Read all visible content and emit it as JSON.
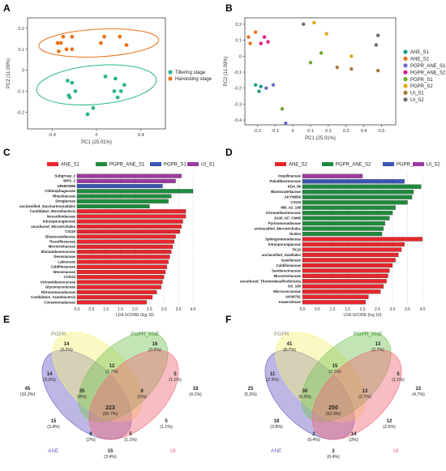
{
  "panel_letters": [
    "A",
    "B",
    "C",
    "D",
    "E",
    "F"
  ],
  "colors": {
    "tillering": "#2bb68f",
    "harvesting": "#e8731c",
    "ANE_S1": "#1f9e89",
    "ANE_S2": "#e8731c",
    "PGPR_ANE_S1": "#6b6bd1",
    "PGPR_ANE_S2": "#e0198a",
    "PGPR_S1": "#6aaa2b",
    "PGPR_S2": "#e1a816",
    "UI_S1": "#a87c3c",
    "UI_S2": "#6e6e6e",
    "lefse_red": "#e8262b",
    "lefse_green": "#1e8c3c",
    "lefse_blue": "#3a55b4",
    "lefse_purple": "#9b3aa0",
    "venn_ANE": "#6b5fc4",
    "venn_PGPR": "#f6f17a",
    "venn_PGPR_ANE": "#7bc65b",
    "venn_UI": "#f06a7a"
  },
  "chart_data": [
    {
      "panel": "A",
      "type": "scatter",
      "xlabel": "PC1 (25.01%)",
      "ylabel": "PC2 (11.09%)",
      "xlim": [
        -0.62,
        0.62
      ],
      "ylim": [
        -0.28,
        0.25
      ],
      "xticks": [
        -0.4,
        0.0,
        0.4
      ],
      "yticks": [
        -0.2,
        -0.1,
        0.0,
        0.1,
        0.2
      ],
      "series": [
        {
          "name": "Tillering stage",
          "points": [
            [
              -0.26,
              -0.05
            ],
            [
              -0.22,
              -0.06
            ],
            [
              -0.25,
              -0.12
            ],
            [
              -0.19,
              -0.1
            ],
            [
              -0.24,
              -0.13
            ],
            [
              0.08,
              -0.03
            ],
            [
              0.17,
              -0.04
            ],
            [
              0.25,
              -0.07
            ],
            [
              0.16,
              -0.1
            ],
            [
              0.22,
              -0.1
            ],
            [
              0.19,
              -0.13
            ],
            [
              -0.03,
              -0.18
            ],
            [
              -0.08,
              -0.21
            ]
          ]
        },
        {
          "name": "Harvesting stage",
          "points": [
            [
              -0.35,
              0.13
            ],
            [
              -0.3,
              0.16
            ],
            [
              -0.22,
              0.16
            ],
            [
              -0.32,
              0.13
            ],
            [
              -0.27,
              0.1
            ],
            [
              -0.22,
              0.1
            ],
            [
              -0.34,
              0.09
            ],
            [
              0.04,
              0.13
            ],
            [
              0.07,
              0.16
            ],
            [
              0.21,
              0.16
            ],
            [
              0.27,
              0.12
            ]
          ]
        }
      ]
    },
    {
      "panel": "B",
      "type": "scatter",
      "xlabel": "PC1 (25.01%)",
      "ylabel": "PC2 (11.09%)",
      "xlim": [
        -0.27,
        0.58
      ],
      "ylim": [
        -0.43,
        0.24
      ],
      "xticks": [
        -0.2,
        -0.1,
        0.0,
        0.1,
        0.2,
        0.3,
        0.4,
        0.5
      ],
      "yticks": [
        -0.4,
        -0.3,
        -0.2,
        -0.1,
        0.0,
        0.1,
        0.2
      ],
      "series": [
        {
          "name": "ANE_S1",
          "points": [
            [
              -0.21,
              -0.18
            ],
            [
              -0.18,
              -0.19
            ],
            [
              -0.19,
              -0.22
            ]
          ]
        },
        {
          "name": "ANE_S2",
          "points": [
            [
              -0.25,
              0.12
            ],
            [
              -0.21,
              0.15
            ],
            [
              -0.24,
              0.08
            ]
          ]
        },
        {
          "name": "PGPR_ANE_S1",
          "points": [
            [
              -0.15,
              -0.2
            ],
            [
              -0.11,
              -0.18
            ],
            [
              -0.04,
              -0.42
            ]
          ]
        },
        {
          "name": "PGPR_ANE_S2",
          "points": [
            [
              -0.18,
              0.08
            ],
            [
              -0.14,
              0.09
            ],
            [
              -0.16,
              0.12
            ]
          ]
        },
        {
          "name": "PGPR_S1",
          "points": [
            [
              0.16,
              0.02
            ],
            [
              0.1,
              -0.04
            ],
            [
              -0.06,
              -0.33
            ]
          ]
        },
        {
          "name": "PGPR_S2",
          "points": [
            [
              0.12,
              0.21
            ],
            [
              0.19,
              0.14
            ],
            [
              0.33,
              0.0
            ]
          ]
        },
        {
          "name": "UI_S1",
          "points": [
            [
              0.25,
              -0.07
            ],
            [
              0.33,
              -0.08
            ],
            [
              0.48,
              -0.09
            ]
          ]
        },
        {
          "name": "UI_S2",
          "points": [
            [
              0.06,
              0.2
            ],
            [
              0.48,
              0.13
            ],
            [
              0.47,
              0.07
            ]
          ]
        }
      ]
    },
    {
      "panel": "C",
      "type": "bar",
      "xlabel": "LDA SCORE (log 10)",
      "xlim": [
        0,
        4.0
      ],
      "xticks": [
        "0.0",
        "0.5",
        "1.0",
        "1.5",
        "2.0",
        "2.5",
        "3.0",
        "3.5",
        "4.0"
      ],
      "legend": [
        "ANE_S1",
        "PGPR_ANE_S1",
        "PGPR_S1",
        "UI_S1"
      ],
      "categories": [
        "Subgroup_2",
        "WPS_2",
        "URHD0088",
        "Chitinophagaceae",
        "Rhizobiaceae",
        "Dongiaceae",
        "unclassified_Saccharimonadales",
        "Candidatus_Moranbacteria",
        "Nocardioidaceae",
        "Intrasporangiaceae",
        "uncultured_Microtrichales",
        "C0119",
        "Blastocatellaceae",
        "Roseiflexaceae",
        "Microtrichaceae",
        "Illumatobacteraceae",
        "Devosiaceae",
        "Labraceae",
        "Caldilineaceae",
        "Woeseiaceae",
        "CCD24",
        "Vicinamibacteraceae",
        "Glycomycetaceae",
        "Nitrosomonadaceae",
        "Candidatus_Azambacteria",
        "Comamonadaceae"
      ],
      "groups": [
        "UI_S1",
        "UI_S1",
        "PGPR_S1",
        "PGPR_ANE_S1",
        "PGPR_ANE_S1",
        "PGPR_ANE_S1",
        "PGPR_ANE_S1",
        "ANE_S1",
        "ANE_S1",
        "ANE_S1",
        "ANE_S1",
        "ANE_S1",
        "ANE_S1",
        "ANE_S1",
        "ANE_S1",
        "ANE_S1",
        "ANE_S1",
        "ANE_S1",
        "ANE_S1",
        "ANE_S1",
        "ANE_S1",
        "ANE_S1",
        "ANE_S1",
        "ANE_S1",
        "ANE_S1",
        "ANE_S1"
      ],
      "values": [
        3.6,
        3.4,
        2.95,
        4.0,
        3.25,
        3.15,
        2.5,
        3.75,
        3.75,
        3.65,
        3.6,
        3.55,
        3.4,
        3.35,
        3.3,
        3.25,
        3.2,
        3.15,
        3.1,
        3.05,
        3.0,
        2.95,
        2.9,
        2.75,
        2.6,
        2.4
      ]
    },
    {
      "panel": "D",
      "type": "bar",
      "xlabel": "LDA SCORE (log 10)",
      "xlim": [
        0,
        4.0
      ],
      "xticks": [
        "0.0",
        "0.5",
        "1.0",
        "1.5",
        "2.0",
        "2.5",
        "3.0",
        "3.5",
        "4.0"
      ],
      "legend": [
        "ANE_S2",
        "PGPR_ANE_S2",
        "PGPR_S2",
        "UI_S2"
      ],
      "categories": [
        "Inquilinaceae",
        "Paludibacteraceae",
        "KD4_96",
        "Blastocatellaceae",
        "AKYM659",
        "C0119",
        "MB_A2_108",
        "Vicinamibacteraceae",
        "JG30_KF_CM45",
        "Pyrinomonadaceae",
        "unclassified_Microtrichales",
        "OLB14",
        "Sphingomonadaceae",
        "Intrasporangiaceae",
        "TK10",
        "unclassified_Gaiellales",
        "Gaiellaceae",
        "Caldilineaceae",
        "Sandaracinaceae",
        "Microtrichaceae",
        "uncultured_Thermodesulfovibrionia",
        "OS_100",
        "Micrococcaceae",
        "AKIW781",
        "Anaerolineae"
      ],
      "groups": [
        "UI_S2",
        "PGPR_S2",
        "PGPR_ANE_S2",
        "PGPR_ANE_S2",
        "PGPR_ANE_S2",
        "PGPR_ANE_S2",
        "PGPR_ANE_S2",
        "PGPR_ANE_S2",
        "PGPR_ANE_S2",
        "PGPR_ANE_S2",
        "PGPR_ANE_S2",
        "PGPR_ANE_S2",
        "ANE_S2",
        "ANE_S2",
        "ANE_S2",
        "ANE_S2",
        "ANE_S2",
        "ANE_S2",
        "ANE_S2",
        "ANE_S2",
        "ANE_S2",
        "ANE_S2",
        "ANE_S2",
        "ANE_S2",
        "ANE_S2"
      ],
      "values": [
        2.0,
        3.4,
        3.95,
        3.7,
        3.65,
        3.5,
        3.1,
        3.0,
        2.9,
        2.75,
        2.7,
        2.65,
        4.0,
        3.4,
        3.3,
        3.2,
        3.1,
        3.0,
        2.9,
        2.85,
        2.8,
        2.7,
        2.6,
        2.2,
        2.1
      ]
    },
    {
      "panel": "E",
      "type": "venn",
      "set_labels": [
        "PGPR",
        "PGPR_ANE",
        "ANE",
        "UI"
      ],
      "regions": [
        {
          "count": "14",
          "pct": "(3.2%)"
        },
        {
          "count": "16",
          "pct": "(3.6%)"
        },
        {
          "count": "14",
          "pct": "(3.2%)"
        },
        {
          "count": "12",
          "pct": "(2.7%)"
        },
        {
          "count": "5",
          "pct": "(1.1%)"
        },
        {
          "count": "45",
          "pct": "(10.2%)"
        },
        {
          "count": "35",
          "pct": "(8%)"
        },
        {
          "count": "9",
          "pct": "(2%)"
        },
        {
          "count": "18",
          "pct": "(4.1%)"
        },
        {
          "count": "223",
          "pct": "(50.7%)"
        },
        {
          "count": "15",
          "pct": "(3.4%)"
        },
        {
          "count": "5",
          "pct": "(1.1%)"
        },
        {
          "count": "9",
          "pct": "(2%)"
        },
        {
          "count": "5",
          "pct": "(1.1%)"
        },
        {
          "count": "15",
          "pct": "(3.4%)"
        }
      ]
    },
    {
      "panel": "F",
      "type": "venn",
      "set_labels": [
        "PGPR",
        "PGPR_ANE",
        "ANE",
        "UI"
      ],
      "regions": [
        {
          "count": "41",
          "pct": "(8.7%)"
        },
        {
          "count": "13",
          "pct": "(2.7%)"
        },
        {
          "count": "11",
          "pct": "(2.3%)"
        },
        {
          "count": "15",
          "pct": "(3.2%)"
        },
        {
          "count": "5",
          "pct": "(1.1%)"
        },
        {
          "count": "25",
          "pct": "(5.3%)"
        },
        {
          "count": "30",
          "pct": "(6.3%)"
        },
        {
          "count": "13",
          "pct": "(2.7%)"
        },
        {
          "count": "22",
          "pct": "(4.7%)"
        },
        {
          "count": "250",
          "pct": "(52.9%)"
        },
        {
          "count": "18",
          "pct": "(3.8%)"
        },
        {
          "count": "12",
          "pct": "(2.5%)"
        },
        {
          "count": "2",
          "pct": "(0.4%)"
        },
        {
          "count": "14",
          "pct": "(3%)"
        },
        {
          "count": "2",
          "pct": "(0.4%)"
        }
      ]
    }
  ]
}
